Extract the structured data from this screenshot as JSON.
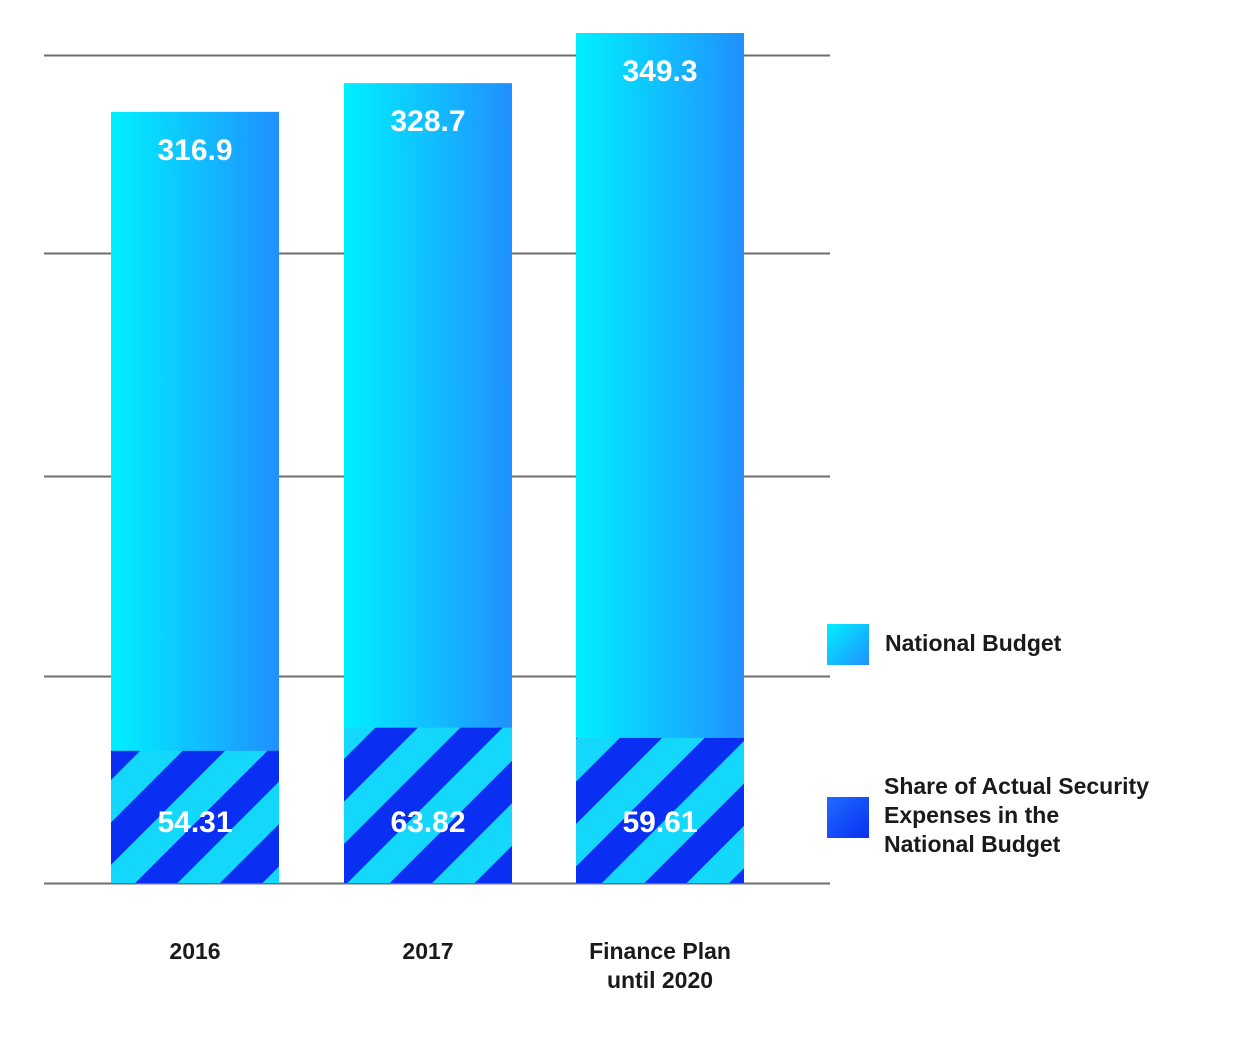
{
  "chart_data": {
    "type": "bar",
    "title": "",
    "xlabel": "",
    "ylabel": "",
    "ylim": [
      0,
      400
    ],
    "categories": [
      "2016",
      "2017",
      "Finance Plan until 2020"
    ],
    "category_lines": [
      [
        "2016"
      ],
      [
        "2017"
      ],
      [
        "Finance Plan",
        "until 2020"
      ]
    ],
    "series": [
      {
        "name": "National Budget",
        "values": [
          316.9,
          328.7,
          349.3
        ]
      },
      {
        "name": "Share of Actual Security Expenses in the National Budget",
        "values": [
          54.31,
          63.82,
          59.61
        ]
      }
    ],
    "data_labels": {
      "national_budget": [
        "316.9",
        "328.7",
        "349.3"
      ],
      "security_share": [
        "54.31",
        "63.82",
        "59.61"
      ]
    },
    "legend": {
      "position": "right",
      "items": [
        {
          "key": "national",
          "lines": [
            "National Budget"
          ]
        },
        {
          "key": "security",
          "lines": [
            "Share of Actual Security",
            "Expenses in the",
            "National Budget"
          ]
        }
      ]
    },
    "grid": true,
    "gridline_values": [
      0,
      85.2,
      167.2,
      258.8,
      340.4
    ]
  },
  "colors": {
    "bar_light": "#00f0ff",
    "bar_dark": "#2090ff",
    "stripe_light": "#13d8fb",
    "stripe_dark": "#0a2ff2",
    "grid": "#6e6e6e",
    "label_white": "#ffffff",
    "text": "#1a1a1a"
  }
}
